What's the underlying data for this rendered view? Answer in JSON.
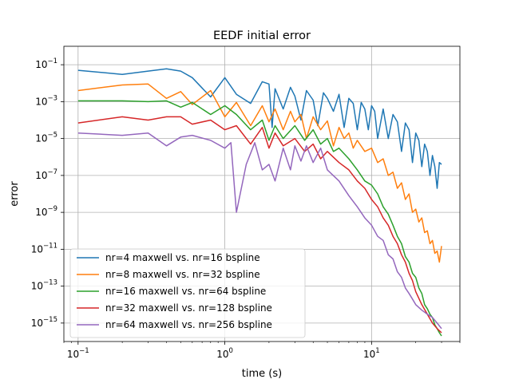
{
  "chart_data": {
    "type": "line",
    "title": "EEDF initial error",
    "xlabel": "time (s)",
    "ylabel": "error",
    "xscale": "log",
    "yscale": "log",
    "xlim": [
      0.08,
      40
    ],
    "ylim": [
      1e-16,
      1.0
    ],
    "grid": true,
    "legend_position": "lower-left",
    "x_ticks": [
      {
        "value": 0.1,
        "label": "10",
        "exp": "−1"
      },
      {
        "value": 1,
        "label": "10",
        "exp": "0"
      },
      {
        "value": 10,
        "label": "10",
        "exp": "1"
      }
    ],
    "y_ticks": [
      {
        "value": 0.1,
        "label": "10",
        "exp": "−1"
      },
      {
        "value": 0.001,
        "label": "10",
        "exp": "−3"
      },
      {
        "value": 1e-05,
        "label": "10",
        "exp": "−5"
      },
      {
        "value": 1e-07,
        "label": "10",
        "exp": "−7"
      },
      {
        "value": 1e-09,
        "label": "10",
        "exp": "−9"
      },
      {
        "value": 1e-11,
        "label": "10",
        "exp": "−11"
      },
      {
        "value": 1e-13,
        "label": "10",
        "exp": "−13"
      },
      {
        "value": 1e-15,
        "label": "10",
        "exp": "−15"
      }
    ],
    "series": [
      {
        "name": "nr=4 maxwell vs. nr=16 bspline",
        "color": "#1f77b4",
        "x": [
          0.1,
          0.2,
          0.3,
          0.4,
          0.5,
          0.6,
          0.8,
          1.0,
          1.2,
          1.5,
          1.8,
          2.0,
          2.1,
          2.2,
          2.5,
          2.8,
          3.0,
          3.3,
          3.6,
          4.0,
          4.3,
          4.7,
          5.0,
          5.5,
          6.0,
          6.5,
          7.0,
          7.5,
          8.0,
          8.5,
          9.0,
          9.5,
          10,
          10.5,
          11,
          12,
          13,
          14,
          15,
          16,
          17,
          18,
          19,
          20,
          21,
          22,
          23,
          24,
          25,
          26,
          27,
          28,
          29,
          30
        ],
        "y": [
          0.05,
          0.03,
          0.045,
          0.06,
          0.045,
          0.02,
          0.0018,
          0.02,
          0.0025,
          0.0008,
          0.012,
          0.009,
          4e-05,
          0.005,
          0.0004,
          0.006,
          0.002,
          0.0001,
          0.004,
          0.0012,
          5e-05,
          0.003,
          0.0015,
          0.0003,
          0.0025,
          4e-05,
          0.0015,
          0.0008,
          3e-05,
          0.0009,
          0.0004,
          3e-05,
          0.0006,
          0.0003,
          1e-05,
          0.0004,
          1e-05,
          0.0002,
          8e-05,
          2e-06,
          7e-05,
          3e-05,
          5e-07,
          2e-05,
          8e-06,
          3e-07,
          5e-06,
          2e-06,
          1e-07,
          1.2e-06,
          3e-07,
          2e-08,
          5e-07,
          4e-07
        ]
      },
      {
        "name": "nr=8 maxwell vs. nr=32 bspline",
        "color": "#ff7f0e",
        "x": [
          0.1,
          0.2,
          0.3,
          0.4,
          0.5,
          0.6,
          0.8,
          1.0,
          1.2,
          1.5,
          1.8,
          2.0,
          2.2,
          2.5,
          2.8,
          3.0,
          3.3,
          3.6,
          4.0,
          4.5,
          5.0,
          5.5,
          6.0,
          6.5,
          7.0,
          7.5,
          8.0,
          9.0,
          10,
          11,
          12,
          13,
          14,
          15,
          16,
          17,
          18,
          19,
          20,
          21,
          22,
          23,
          24,
          25,
          26,
          27,
          28,
          29,
          30
        ],
        "y": [
          0.004,
          0.008,
          0.009,
          0.0015,
          0.0035,
          0.0007,
          0.004,
          0.00015,
          0.0009,
          5e-05,
          0.0006,
          8e-05,
          0.0004,
          3e-05,
          0.0003,
          8e-05,
          0.0002,
          1e-05,
          0.00015,
          3e-05,
          9e-05,
          4e-06,
          4e-05,
          1e-05,
          2e-05,
          3e-06,
          8e-06,
          2e-06,
          3e-06,
          5e-07,
          8e-07,
          1e-07,
          1.5e-07,
          2e-08,
          4e-08,
          5e-09,
          1e-08,
          1e-09,
          1.5e-09,
          3e-10,
          5e-10,
          8e-11,
          1e-10,
          2e-11,
          3e-11,
          6e-12,
          8e-12,
          2e-12,
          1.5e-11
        ]
      },
      {
        "name": "nr=16 maxwell vs. nr=64 bspline",
        "color": "#2ca02c",
        "x": [
          0.1,
          0.2,
          0.3,
          0.4,
          0.5,
          0.6,
          0.8,
          1.0,
          1.2,
          1.5,
          1.8,
          2.0,
          2.2,
          2.5,
          3.0,
          3.5,
          4.0,
          4.5,
          5.0,
          5.5,
          6.0,
          7.0,
          8.0,
          9.0,
          10,
          11,
          12,
          13,
          14,
          15,
          16,
          17,
          18,
          19,
          20,
          21,
          22,
          23,
          24,
          25,
          26,
          27,
          28,
          29,
          30
        ],
        "y": [
          0.0011,
          0.0011,
          0.001,
          0.0011,
          0.0005,
          0.0009,
          0.0002,
          0.0006,
          0.0002,
          3e-05,
          0.0001,
          8e-06,
          5e-05,
          1e-05,
          5e-05,
          8e-06,
          3e-05,
          5e-06,
          1e-05,
          2e-06,
          3e-06,
          8e-07,
          2e-07,
          5e-08,
          3e-08,
          1e-08,
          2e-09,
          8e-10,
          2e-10,
          5e-11,
          2e-11,
          4e-12,
          2e-12,
          5e-13,
          3e-13,
          8e-14,
          4e-14,
          1e-14,
          6e-15,
          3e-15,
          2e-15,
          8e-16,
          5e-16,
          3e-16,
          2e-16
        ]
      },
      {
        "name": "nr=32 maxwell vs. nr=128 bspline",
        "color": "#d62728",
        "x": [
          0.1,
          0.2,
          0.3,
          0.4,
          0.5,
          0.6,
          0.8,
          1.0,
          1.2,
          1.5,
          1.8,
          2.0,
          2.2,
          2.5,
          3.0,
          3.5,
          4.0,
          4.5,
          5.0,
          6.0,
          7.0,
          8.0,
          9.0,
          10,
          11,
          12,
          13,
          14,
          15,
          16,
          17,
          18,
          19,
          20,
          22,
          24,
          26,
          28,
          30
        ],
        "y": [
          7e-05,
          0.00015,
          0.0001,
          0.00015,
          0.00015,
          6e-05,
          0.0001,
          3e-05,
          5e-05,
          5e-06,
          4e-05,
          3e-06,
          2e-05,
          4e-06,
          1e-05,
          2e-06,
          5e-06,
          8e-07,
          2e-06,
          5e-07,
          2e-07,
          5e-08,
          2e-08,
          5e-09,
          2e-09,
          5e-10,
          2e-10,
          5e-11,
          2e-11,
          5e-12,
          2e-12,
          5e-13,
          2e-13,
          5e-14,
          1e-14,
          3e-15,
          1e-15,
          5e-16,
          3e-16
        ]
      },
      {
        "name": "nr=64 maxwell vs. nr=256 bspline",
        "color": "#9467bd",
        "x": [
          0.1,
          0.2,
          0.3,
          0.4,
          0.5,
          0.6,
          0.8,
          1.0,
          1.1,
          1.2,
          1.4,
          1.6,
          1.8,
          2.0,
          2.2,
          2.5,
          2.8,
          3.0,
          3.3,
          3.6,
          4.0,
          4.5,
          5.0,
          6.0,
          7.0,
          8.0,
          9.0,
          10,
          11,
          12,
          13,
          14,
          15,
          16,
          17,
          18,
          19,
          20,
          22,
          24,
          26,
          28,
          30
        ],
        "y": [
          2e-05,
          1.5e-05,
          2e-05,
          4e-06,
          1.2e-05,
          1.5e-05,
          8e-06,
          3e-06,
          6e-06,
          1e-09,
          4e-07,
          6e-06,
          2e-07,
          4e-07,
          5e-08,
          3e-06,
          2e-07,
          4e-06,
          6e-07,
          4e-06,
          5e-07,
          3e-06,
          2e-07,
          5e-08,
          8e-09,
          2e-09,
          5e-10,
          2e-10,
          5e-11,
          3e-11,
          5e-12,
          3e-12,
          6e-13,
          3e-13,
          8e-14,
          4e-14,
          2e-14,
          1e-14,
          5e-15,
          3e-15,
          2e-15,
          1e-15,
          5e-16
        ]
      }
    ]
  }
}
